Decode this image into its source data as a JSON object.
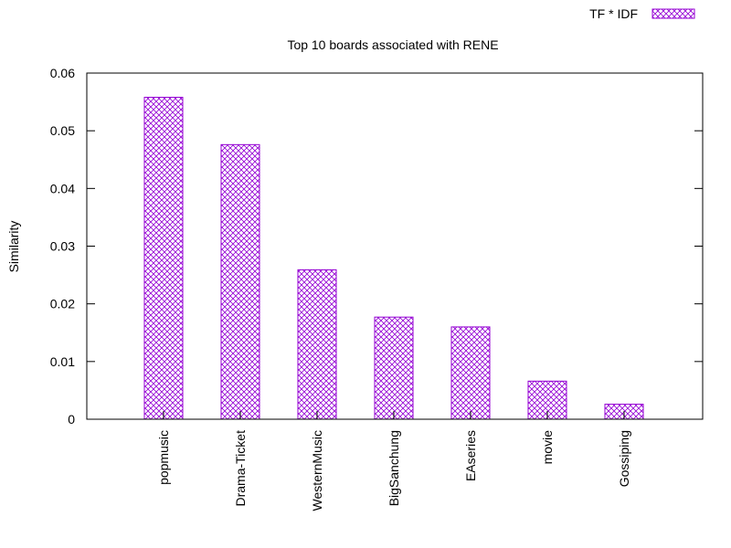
{
  "chart_data": {
    "type": "bar",
    "title": "Top 10 boards associated with RENE",
    "ylabel": "Similarity",
    "xlabel": "",
    "ylim": [
      0,
      0.06
    ],
    "yticks": [
      0,
      0.01,
      0.02,
      0.03,
      0.04,
      0.05,
      0.06
    ],
    "ytick_labels": [
      "0",
      "0.01",
      "0.02",
      "0.03",
      "0.04",
      "0.05",
      "0.06"
    ],
    "categories": [
      "popmusic",
      "Drama-Ticket",
      "WesternMusic",
      "BigSanchung",
      "EAseries",
      "movie",
      "Gossiping"
    ],
    "series": [
      {
        "name": "TF * IDF",
        "values": [
          0.0558,
          0.0476,
          0.0259,
          0.0177,
          0.016,
          0.0066,
          0.0026
        ]
      }
    ],
    "legend_position": "top-right",
    "grid": false,
    "bar_color": "#9400d3",
    "bar_pattern": "crosshatch"
  }
}
